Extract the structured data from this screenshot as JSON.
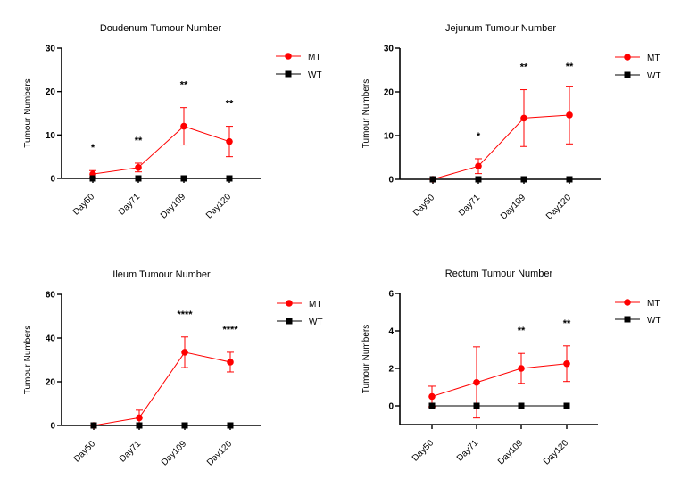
{
  "colors": {
    "MT": "#ff0000",
    "WT": "#000000"
  },
  "chart_data": [
    {
      "type": "line",
      "title": "Doudenum Tumour Number",
      "ylabel": "Tumour Numbers",
      "categories": [
        "Day50",
        "Day71",
        "Day109",
        "Day120"
      ],
      "ylim": [
        0,
        30
      ],
      "yticks": [
        0,
        10,
        20,
        30
      ],
      "legend_position": "right",
      "series": [
        {
          "name": "MT",
          "marker": "circle",
          "values": [
            1,
            2.5,
            12,
            8.5
          ],
          "errors": [
            0.8,
            1.0,
            4.3,
            3.5
          ]
        },
        {
          "name": "WT",
          "marker": "square",
          "values": [
            0,
            0,
            0,
            0
          ],
          "errors": [
            0,
            0,
            0,
            0
          ]
        }
      ],
      "significance": [
        "*",
        "**",
        "**",
        "**"
      ]
    },
    {
      "type": "line",
      "title": "Jejunum Tumour Number",
      "ylabel": "Tumour Numbers",
      "categories": [
        "Day50",
        "Day71",
        "Day109",
        "Day120"
      ],
      "ylim": [
        0,
        30
      ],
      "yticks": [
        0,
        10,
        20,
        30
      ],
      "legend_position": "right",
      "series": [
        {
          "name": "MT",
          "marker": "circle",
          "values": [
            0,
            3,
            14,
            14.7
          ],
          "errors": [
            0,
            1.7,
            6.5,
            6.6
          ]
        },
        {
          "name": "WT",
          "marker": "square",
          "values": [
            0,
            0,
            0,
            0
          ],
          "errors": [
            0,
            0,
            0,
            0
          ]
        }
      ],
      "significance": [
        "",
        "*",
        "**",
        "**"
      ]
    },
    {
      "type": "line",
      "title": "Ileum Tumour Number",
      "ylabel": "Tumour Numbers",
      "categories": [
        "Day50",
        "Day71",
        "Day109",
        "Day120"
      ],
      "ylim": [
        0,
        60
      ],
      "yticks": [
        0,
        20,
        40,
        60
      ],
      "legend_position": "right",
      "series": [
        {
          "name": "MT",
          "marker": "circle",
          "values": [
            0,
            3.5,
            33.5,
            29
          ],
          "errors": [
            0,
            3.5,
            7,
            4.5
          ]
        },
        {
          "name": "WT",
          "marker": "square",
          "values": [
            0,
            0,
            0,
            0
          ],
          "errors": [
            0,
            0,
            0,
            0
          ]
        }
      ],
      "significance": [
        "",
        "",
        "****",
        "****"
      ]
    },
    {
      "type": "line",
      "title": "Rectum Tumour Number",
      "ylabel": "Tumour Numbers",
      "categories": [
        "Day50",
        "Day71",
        "Day109",
        "Day120"
      ],
      "ylim": [
        -1,
        6
      ],
      "yticks": [
        0,
        2,
        4,
        6
      ],
      "legend_position": "right",
      "series": [
        {
          "name": "MT",
          "marker": "circle",
          "values": [
            0.5,
            1.25,
            2,
            2.25
          ],
          "errors": [
            0.55,
            1.9,
            0.8,
            0.95
          ]
        },
        {
          "name": "WT",
          "marker": "square",
          "values": [
            0,
            0,
            0,
            0
          ],
          "errors": [
            0,
            0,
            0,
            0
          ]
        }
      ],
      "significance": [
        "",
        "",
        "**",
        "**"
      ]
    }
  ]
}
